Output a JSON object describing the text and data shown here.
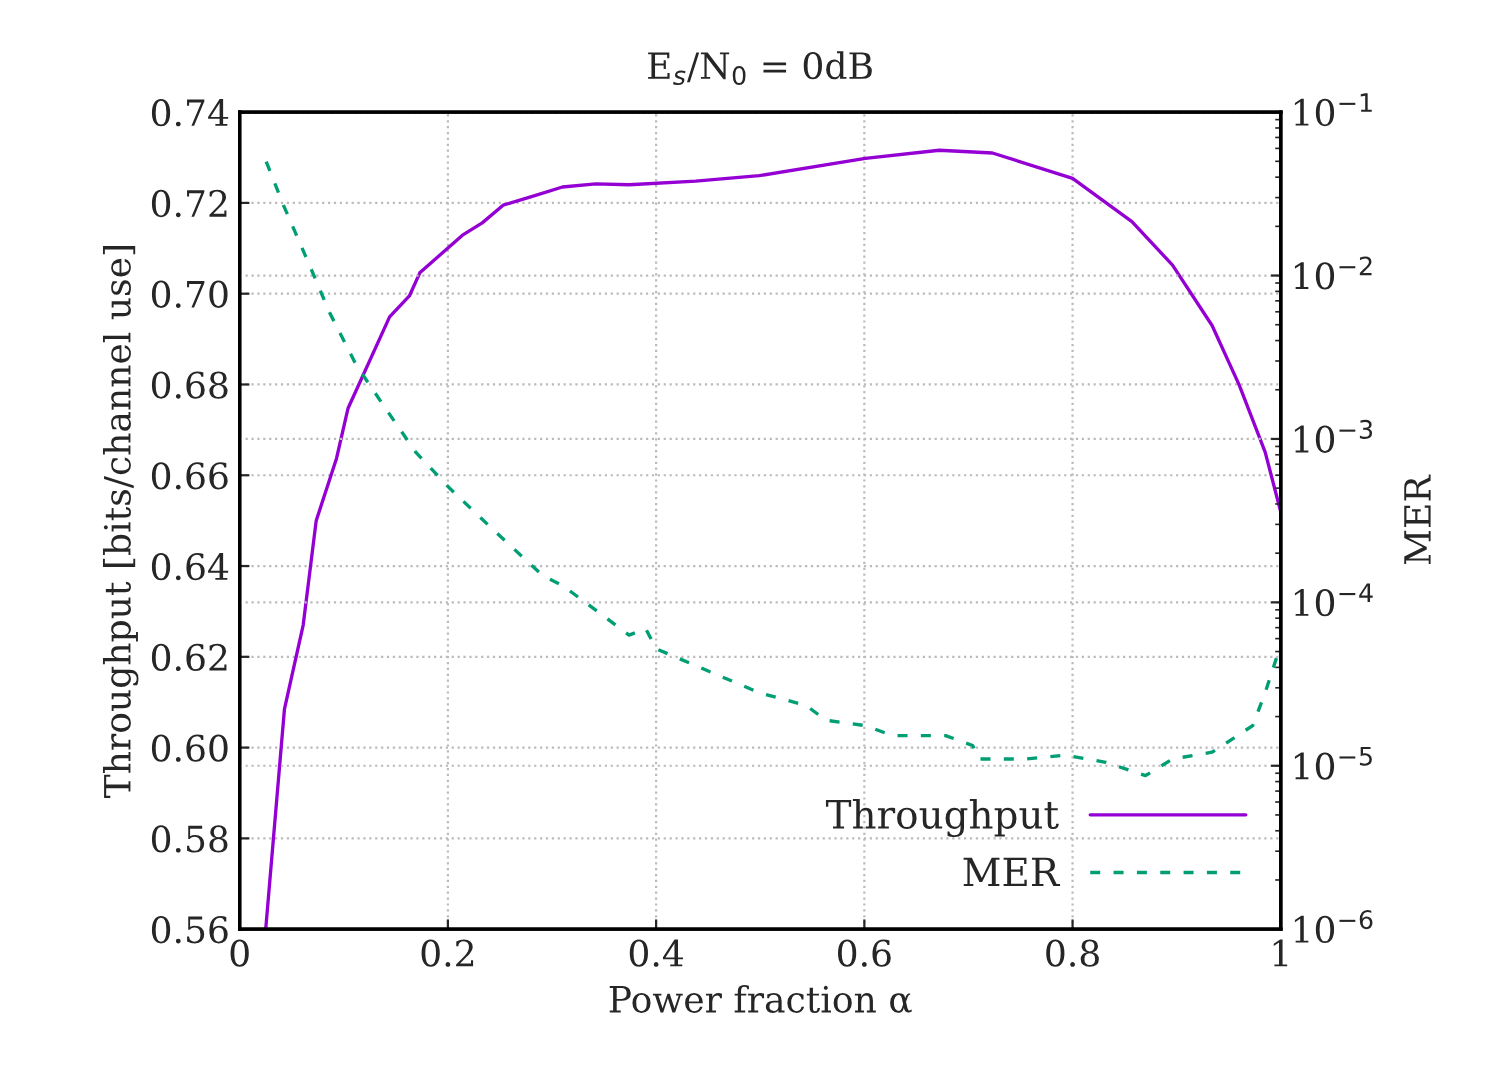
{
  "chart_data": {
    "type": "line",
    "title": "E$_{s}$/N$_{0}$ = 0dB",
    "xlabel": "Power fraction α",
    "ylabel": "Throughput [bits/channel use]",
    "y2label": "MER",
    "xlim": [
      0,
      1
    ],
    "xticks": [
      0,
      0.2,
      0.4,
      0.6,
      0.8,
      1
    ],
    "ylim": [
      0.56,
      0.74
    ],
    "yticks": [
      0.56,
      0.58,
      {
        "value": 0.6,
        "label": "0.60"
      },
      0.62,
      0.64,
      0.66,
      0.68,
      {
        "value": 0.7,
        "label": "0.70"
      },
      0.72,
      0.74
    ],
    "y2lim": [
      1e-06,
      0.1
    ],
    "y2ticks": [
      {
        "value": 1e-06,
        "label": "10$^{−6}$"
      },
      {
        "value": 1e-05,
        "label": "10$^{−5}$"
      },
      {
        "value": 0.0001,
        "label": "10$^{−4}$"
      },
      {
        "value": 0.001,
        "label": "10$^{−3}$"
      },
      {
        "value": 0.01,
        "label": "10$^{−2}$"
      },
      {
        "value": 0.1,
        "label": "10$^{−1}$"
      }
    ],
    "log": "y2",
    "grid": true,
    "legend": "bottom right",
    "series": [
      {
        "name": "Throughput",
        "color": "#9400d3",
        "line_style": "solid",
        "x": [
          0.025,
          0.043,
          0.061,
          0.0735,
          0.093,
          0.104,
          0.144,
          0.163,
          0.173,
          0.214,
          0.233,
          0.253,
          0.285,
          0.31,
          0.342,
          0.374,
          0.438,
          0.499,
          0.601,
          0.672,
          0.723,
          0.8,
          0.857,
          0.896,
          0.934,
          0.96,
          0.985,
          1.0
        ],
        "values": [
          0.56,
          0.6085,
          0.627,
          0.65,
          0.6637,
          0.6747,
          0.6949,
          0.6995,
          0.7046,
          0.7129,
          0.7156,
          0.7195,
          0.7217,
          0.7235,
          0.7242,
          0.724,
          0.7248,
          0.726,
          0.7298,
          0.7316,
          0.731,
          0.7254,
          0.7159,
          0.7063,
          0.693,
          0.6799,
          0.6651,
          0.6519
        ]
      },
      {
        "name": "MER",
        "color": "#009e73",
        "line_style": "dashed",
        "axis": "y2",
        "x": [
          0.0255,
          0.042,
          0.067,
          0.086,
          0.112,
          0.138,
          0.169,
          0.202,
          0.246,
          0.291,
          0.31,
          0.349,
          0.374,
          0.39,
          0.4,
          0.438,
          0.499,
          0.544,
          0.563,
          0.601,
          0.627,
          0.678,
          0.704,
          0.71,
          0.755,
          0.793,
          0.832,
          0.87,
          0.896,
          0.934,
          0.973,
          0.985,
          1.0
        ],
        "values": [
          0.0498,
          0.027,
          0.0116,
          0.006,
          0.00283,
          0.00161,
          0.00083,
          0.000497,
          0.000269,
          0.000146,
          0.000127,
          8.3e-05,
          6.3e-05,
          6.9e-05,
          5.2e-05,
          4.1e-05,
          2.8e-05,
          2.34e-05,
          1.9e-05,
          1.76e-05,
          1.53e-05,
          1.53e-05,
          1.33e-05,
          1.1e-05,
          1.1e-05,
          1.16e-05,
          1.05e-05,
          8.7e-06,
          1.1e-05,
          1.21e-05,
          1.76e-05,
          2.8e-05,
          5.5e-05
        ]
      }
    ]
  }
}
